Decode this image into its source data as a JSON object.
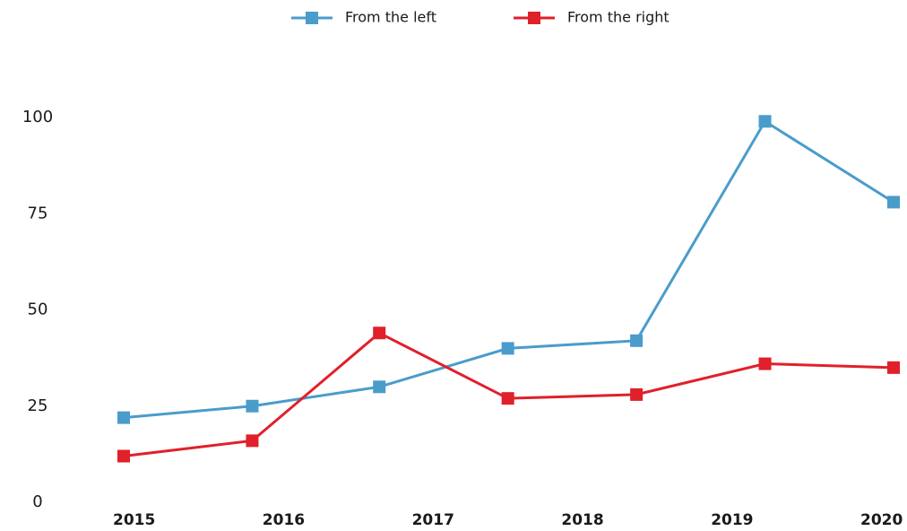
{
  "chart_data": {
    "type": "line",
    "x": [
      2014.93,
      2015.79,
      2016.64,
      2017.5,
      2018.36,
      2019.22,
      2020.08
    ],
    "series": [
      {
        "name": "From the left",
        "color": "#4a9ccb",
        "values": [
          22,
          25,
          30,
          40,
          42,
          99,
          78
        ]
      },
      {
        "name": "From the right",
        "color": "#e0202a",
        "values": [
          12,
          16,
          44,
          27,
          28,
          36,
          35
        ]
      }
    ],
    "xlim": [
      2014.93,
      2020.08
    ],
    "xticks": [
      2015,
      2016,
      2017,
      2018,
      2019,
      2020
    ],
    "ylim": [
      0,
      100
    ],
    "yticks": [
      0,
      25,
      50,
      75,
      100
    ],
    "grid": false,
    "legend": "top"
  }
}
